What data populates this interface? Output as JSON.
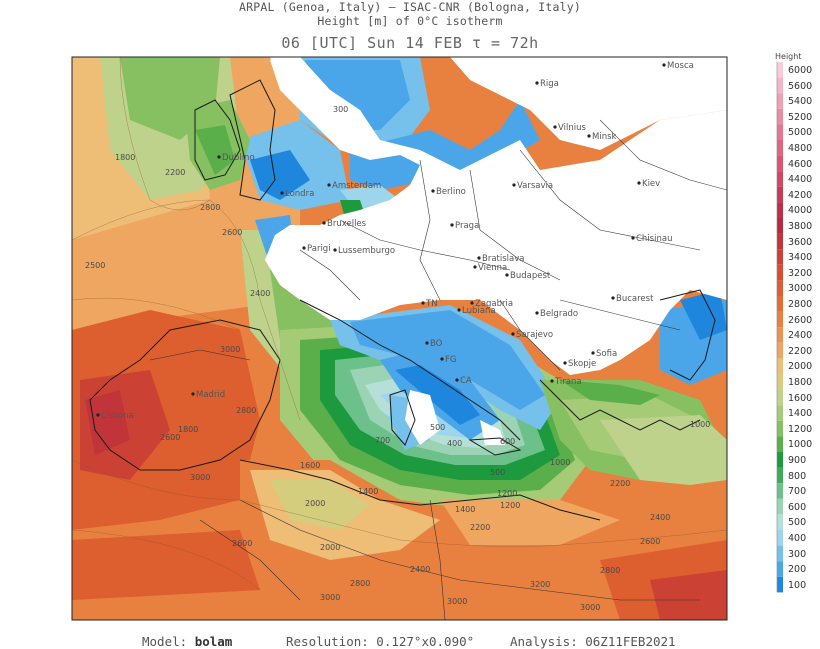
{
  "header": {
    "line1": "ARPAL (Genoa, Italy)  –  ISAC-CNR (Bologna, Italy)",
    "line2": "Height [m] of 0°C isotherm",
    "line3": "06 [UTC] Sun 14 FEB  τ = 72h"
  },
  "legend": {
    "title": "Height",
    "levels": [
      "6000",
      "5600",
      "5400",
      "5200",
      "5000",
      "4800",
      "4600",
      "4400",
      "4200",
      "4000",
      "3800",
      "3600",
      "3400",
      "3200",
      "3000",
      "2800",
      "2600",
      "2400",
      "2200",
      "2000",
      "1800",
      "1600",
      "1400",
      "1200",
      "1000",
      "900",
      "800",
      "700",
      "600",
      "500",
      "400",
      "300",
      "200",
      "100"
    ],
    "colors": [
      "#f7cdd8",
      "#f3b6c6",
      "#efa1b4",
      "#ea8ca2",
      "#e47890",
      "#de6680",
      "#d85671",
      "#cf4761",
      "#c53a54",
      "#bb2f47",
      "#b72a3d",
      "#c1353a",
      "#cb4235",
      "#d54f30",
      "#dd5e2f",
      "#e26e35",
      "#e8813f",
      "#eb9350",
      "#eea660",
      "#eebd76",
      "#d4cd7e",
      "#bfd28b",
      "#a5cb76",
      "#86c060",
      "#5aaf4a",
      "#1e9a3e",
      "#3caa57",
      "#6cc08a",
      "#9bd3b4",
      "#b4e0d8",
      "#9dd6ec",
      "#76c1eb",
      "#4aa6e8",
      "#1e87dd"
    ]
  },
  "cities": [
    {
      "name": "Mosca"
    },
    {
      "name": "Vilnius"
    },
    {
      "name": "Minsk"
    },
    {
      "name": "Riga"
    },
    {
      "name": "Berlino"
    },
    {
      "name": "Varsavia"
    },
    {
      "name": "Kiev"
    },
    {
      "name": "Dublino"
    },
    {
      "name": "Londra"
    },
    {
      "name": "Amsterdam"
    },
    {
      "name": "Bruxelles"
    },
    {
      "name": "Parigi"
    },
    {
      "name": "Lussemburgo"
    },
    {
      "name": "Praga"
    },
    {
      "name": "Bratislava"
    },
    {
      "name": "Vienna"
    },
    {
      "name": "Budapest"
    },
    {
      "name": "Chisinau"
    },
    {
      "name": "Bucarest"
    },
    {
      "name": "Zagabria"
    },
    {
      "name": "Lubiana"
    },
    {
      "name": "Belgrado"
    },
    {
      "name": "Sarajevo"
    },
    {
      "name": "Sofia"
    },
    {
      "name": "Skopje"
    },
    {
      "name": "Tirana"
    },
    {
      "name": "Madrid"
    },
    {
      "name": "Lisbona"
    },
    {
      "name": "TN"
    },
    {
      "name": "BO"
    },
    {
      "name": "FG"
    },
    {
      "name": "CA"
    }
  ],
  "contour_labels": [
    "300",
    "1800",
    "2200",
    "2800",
    "2600",
    "2500",
    "2400",
    "3000",
    "2800",
    "1600",
    "1400",
    "1800",
    "2000",
    "2200",
    "2000",
    "3000",
    "2600",
    "2400",
    "2800",
    "3000",
    "3000",
    "2800",
    "3200",
    "2600",
    "2400",
    "2200",
    "1200",
    "1400",
    "1200",
    "1000",
    "700",
    "500",
    "400",
    "600",
    "1000",
    "500",
    "2600",
    "3000"
  ],
  "footer": {
    "model_label": "Model:",
    "model_name": "bolam",
    "resolution": "Resolution: 0.127°x0.090°",
    "analysis": "Analysis: 06Z11FEB2021"
  }
}
